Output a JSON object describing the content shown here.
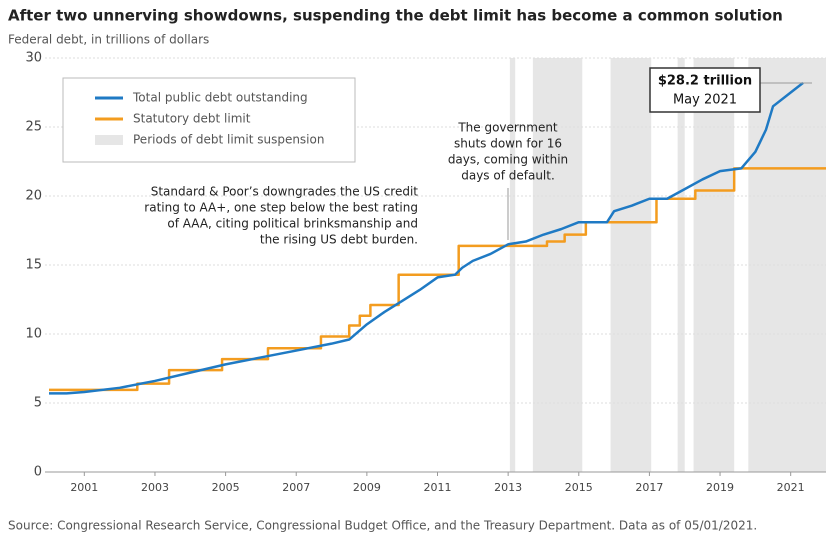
{
  "chart_data": {
    "type": "line",
    "title": "After two unnerving showdowns, suspending the debt limit has become a common solution",
    "subtitle": "Federal debt, in trillions of dollars",
    "source": "Source: Congressional Research Service, Congressional Budget Office, and the Treasury Department. Data as of 05/01/2021.",
    "xlim": [
      2000,
      2022
    ],
    "xticks": [
      2001,
      2003,
      2005,
      2007,
      2009,
      2011,
      2013,
      2015,
      2017,
      2019,
      2021
    ],
    "ylim": [
      0,
      30
    ],
    "yticks": [
      0,
      5,
      10,
      15,
      20,
      25,
      30
    ],
    "grid": true,
    "series": [
      {
        "name": "Total public debt outstanding",
        "color": "#1f7ac4",
        "x": [
          2000.0,
          2000.5,
          2001.0,
          2002.0,
          2003.0,
          2004.0,
          2005.0,
          2006.0,
          2007.0,
          2008.0,
          2008.5,
          2009.0,
          2009.5,
          2010.0,
          2010.5,
          2011.0,
          2011.5,
          2011.7,
          2012.0,
          2012.5,
          2013.0,
          2013.5,
          2014.0,
          2014.5,
          2015.0,
          2015.8,
          2016.0,
          2016.5,
          2017.0,
          2017.5,
          2018.0,
          2018.5,
          2019.0,
          2019.6,
          2020.0,
          2020.3,
          2020.5,
          2021.0,
          2021.35
        ],
        "values": [
          5.7,
          5.7,
          5.8,
          6.1,
          6.6,
          7.2,
          7.8,
          8.3,
          8.8,
          9.3,
          9.6,
          10.7,
          11.6,
          12.4,
          13.2,
          14.1,
          14.3,
          14.8,
          15.3,
          15.8,
          16.5,
          16.7,
          17.2,
          17.6,
          18.1,
          18.1,
          18.9,
          19.3,
          19.8,
          19.8,
          20.5,
          21.2,
          21.8,
          22.0,
          23.2,
          24.8,
          26.5,
          27.5,
          28.2
        ]
      },
      {
        "name": "Statutory debt limit",
        "color": "#f39c1f",
        "x": [
          2000.0,
          2002.5,
          2002.5,
          2003.4,
          2003.4,
          2004.9,
          2004.9,
          2006.2,
          2006.2,
          2007.7,
          2007.7,
          2008.5,
          2008.5,
          2008.8,
          2008.8,
          2009.1,
          2009.1,
          2009.9,
          2009.9,
          2011.6,
          2011.6,
          2014.1,
          2014.1,
          2014.6,
          2014.6,
          2015.2,
          2015.2,
          2017.2,
          2017.2,
          2018.3,
          2018.3,
          2019.4,
          2019.4,
          2022.0
        ],
        "values": [
          5.95,
          5.95,
          6.4,
          6.4,
          7.38,
          7.38,
          8.18,
          8.18,
          8.97,
          8.97,
          9.82,
          9.82,
          10.62,
          10.62,
          11.32,
          11.32,
          12.1,
          12.1,
          14.29,
          14.29,
          16.39,
          16.39,
          16.7,
          16.7,
          17.2,
          17.2,
          18.1,
          18.1,
          19.8,
          19.8,
          20.4,
          20.4,
          22.0,
          22.0
        ]
      }
    ],
    "suspension_name": "Periods of debt limit suspension",
    "suspension_color": "#e6e6e6",
    "suspension_periods": [
      [
        2013.05,
        2013.2
      ],
      [
        2013.7,
        2015.1
      ],
      [
        2015.9,
        2017.05
      ],
      [
        2017.8,
        2018.0
      ],
      [
        2018.25,
        2019.4
      ],
      [
        2019.8,
        2022.0
      ]
    ],
    "annotations": [
      {
        "lines": [
          "The government",
          "shuts down for 16",
          "days, coming within",
          "days of default."
        ]
      },
      {
        "lines": [
          "Standard & Poor’s downgrades the US credit",
          "rating to AA+, one step below the best rating",
          "of AAA, citing political brinksmanship and",
          "the rising US debt burden."
        ]
      },
      {
        "lines": [
          "$28.2 trillion",
          "May 2021"
        ]
      }
    ]
  }
}
